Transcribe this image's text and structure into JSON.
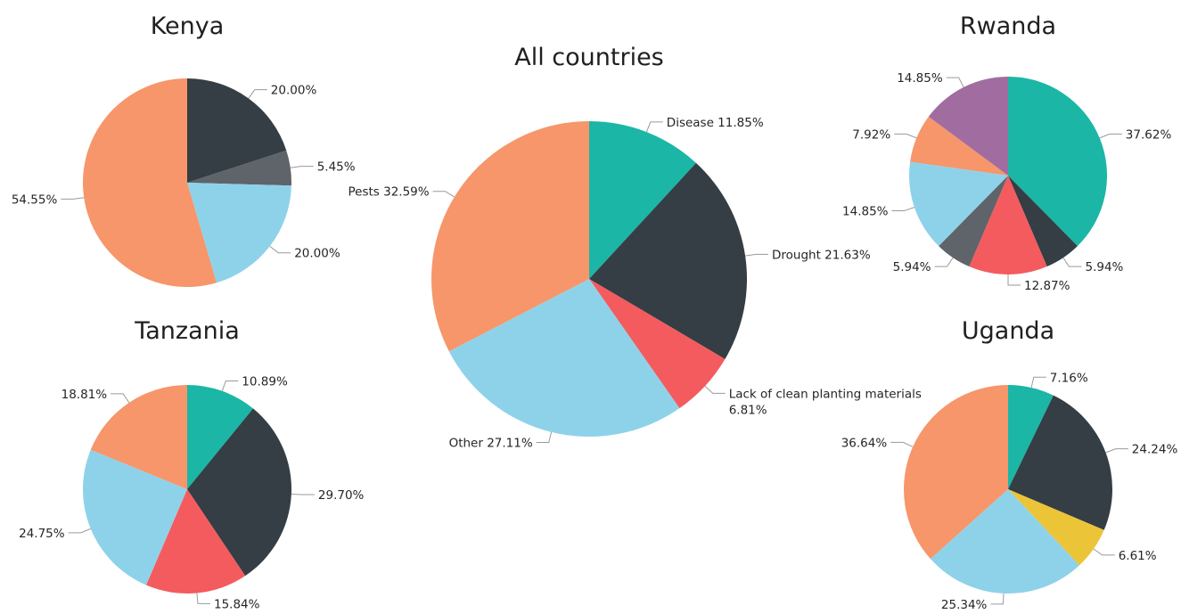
{
  "colors": {
    "teal": "#1bb6a6",
    "charcoal": "#343e44",
    "slate": "#5e6469",
    "light_blue": "#8ed2ea",
    "red": "#f45b5e",
    "orange": "#f6966a",
    "purple": "#a16da0",
    "yellow": "#ecc437"
  },
  "chart_data": [
    {
      "type": "pie",
      "title": "Kenya",
      "slices": [
        {
          "value": 20.0,
          "label": "20.00%",
          "color": "charcoal"
        },
        {
          "value": 5.45,
          "label": "5.45%",
          "color": "slate"
        },
        {
          "value": 20.0,
          "label": "20.00%",
          "color": "light_blue"
        },
        {
          "value": 54.55,
          "label": "54.55%",
          "color": "orange"
        }
      ]
    },
    {
      "type": "pie",
      "title": "All countries",
      "slices": [
        {
          "name": "Disease",
          "value": 11.85,
          "label": "Disease 11.85%",
          "color": "teal"
        },
        {
          "name": "Drought",
          "value": 21.63,
          "label": "Drought 21.63%",
          "color": "charcoal"
        },
        {
          "name": "Lack of clean planting materials",
          "value": 6.81,
          "label": "Lack of clean planting materials",
          "label2": "6.81%",
          "color": "red"
        },
        {
          "name": "Other",
          "value": 27.11,
          "label": "Other 27.11%",
          "color": "light_blue"
        },
        {
          "name": "Pests",
          "value": 32.59,
          "label": "Pests 32.59%",
          "color": "orange"
        }
      ]
    },
    {
      "type": "pie",
      "title": "Rwanda",
      "slices": [
        {
          "value": 37.62,
          "label": "37.62%",
          "color": "teal"
        },
        {
          "value": 5.94,
          "label": "5.94%",
          "color": "charcoal"
        },
        {
          "value": 12.87,
          "label": "12.87%",
          "color": "red"
        },
        {
          "value": 5.94,
          "label": "5.94%",
          "color": "slate"
        },
        {
          "value": 14.85,
          "label": "14.85%",
          "color": "light_blue"
        },
        {
          "value": 7.92,
          "label": "7.92%",
          "color": "orange"
        },
        {
          "value": 14.85,
          "label": "14.85%",
          "color": "purple"
        }
      ]
    },
    {
      "type": "pie",
      "title": "Tanzania",
      "slices": [
        {
          "value": 10.89,
          "label": "10.89%",
          "color": "teal"
        },
        {
          "value": 29.7,
          "label": "29.70%",
          "color": "charcoal"
        },
        {
          "value": 15.84,
          "label": "15.84%",
          "color": "red"
        },
        {
          "value": 24.75,
          "label": "24.75%",
          "color": "light_blue"
        },
        {
          "value": 18.81,
          "label": "18.81%",
          "color": "orange"
        }
      ]
    },
    {
      "type": "pie",
      "title": "Uganda",
      "slices": [
        {
          "value": 7.16,
          "label": "7.16%",
          "color": "teal"
        },
        {
          "value": 24.24,
          "label": "24.24%",
          "color": "charcoal"
        },
        {
          "value": 6.61,
          "label": "6.61%",
          "color": "yellow"
        },
        {
          "value": 25.34,
          "label": "25.34%",
          "color": "light_blue"
        },
        {
          "value": 36.64,
          "label": "36.64%",
          "color": "orange"
        }
      ]
    }
  ]
}
